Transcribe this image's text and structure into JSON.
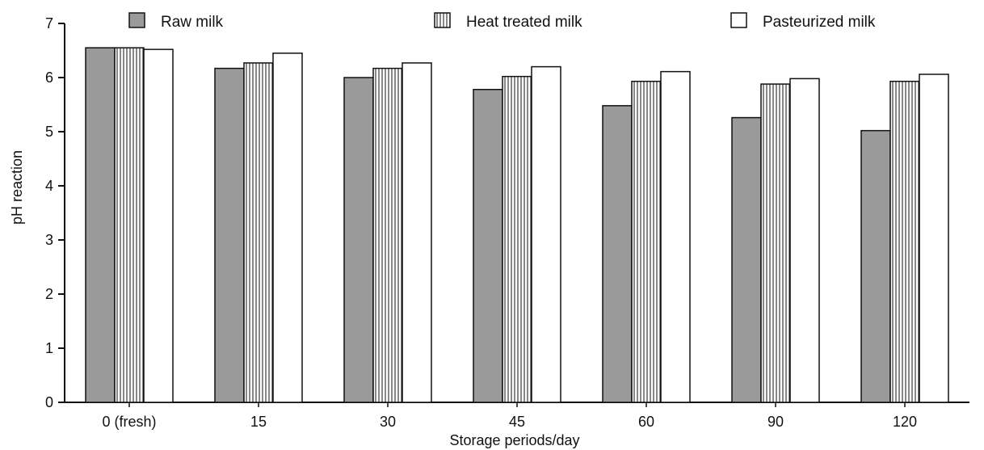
{
  "chart_data": {
    "type": "bar",
    "title": "",
    "xlabel": "Storage periods/day",
    "ylabel": "pH reaction",
    "ylim": [
      0,
      7
    ],
    "yticks": [
      0,
      1,
      2,
      3,
      4,
      5,
      6,
      7
    ],
    "grid": false,
    "legend_position": "top",
    "categories": [
      "0 (fresh)",
      "15",
      "30",
      "45",
      "60",
      "90",
      "120"
    ],
    "series": [
      {
        "name": "Raw milk",
        "pattern": "solid-gray",
        "color": "#9a9a9a",
        "values": [
          6.55,
          6.17,
          6.0,
          5.78,
          5.48,
          5.26,
          5.02
        ]
      },
      {
        "name": "Heat treated milk",
        "pattern": "vertical-hatch",
        "color": "#ffffff",
        "values": [
          6.55,
          6.27,
          6.17,
          6.02,
          5.93,
          5.88,
          5.93
        ]
      },
      {
        "name": "Pasteurized milk",
        "pattern": "white",
        "color": "#ffffff",
        "values": [
          6.52,
          6.45,
          6.27,
          6.2,
          6.11,
          5.98,
          6.06
        ]
      }
    ]
  }
}
